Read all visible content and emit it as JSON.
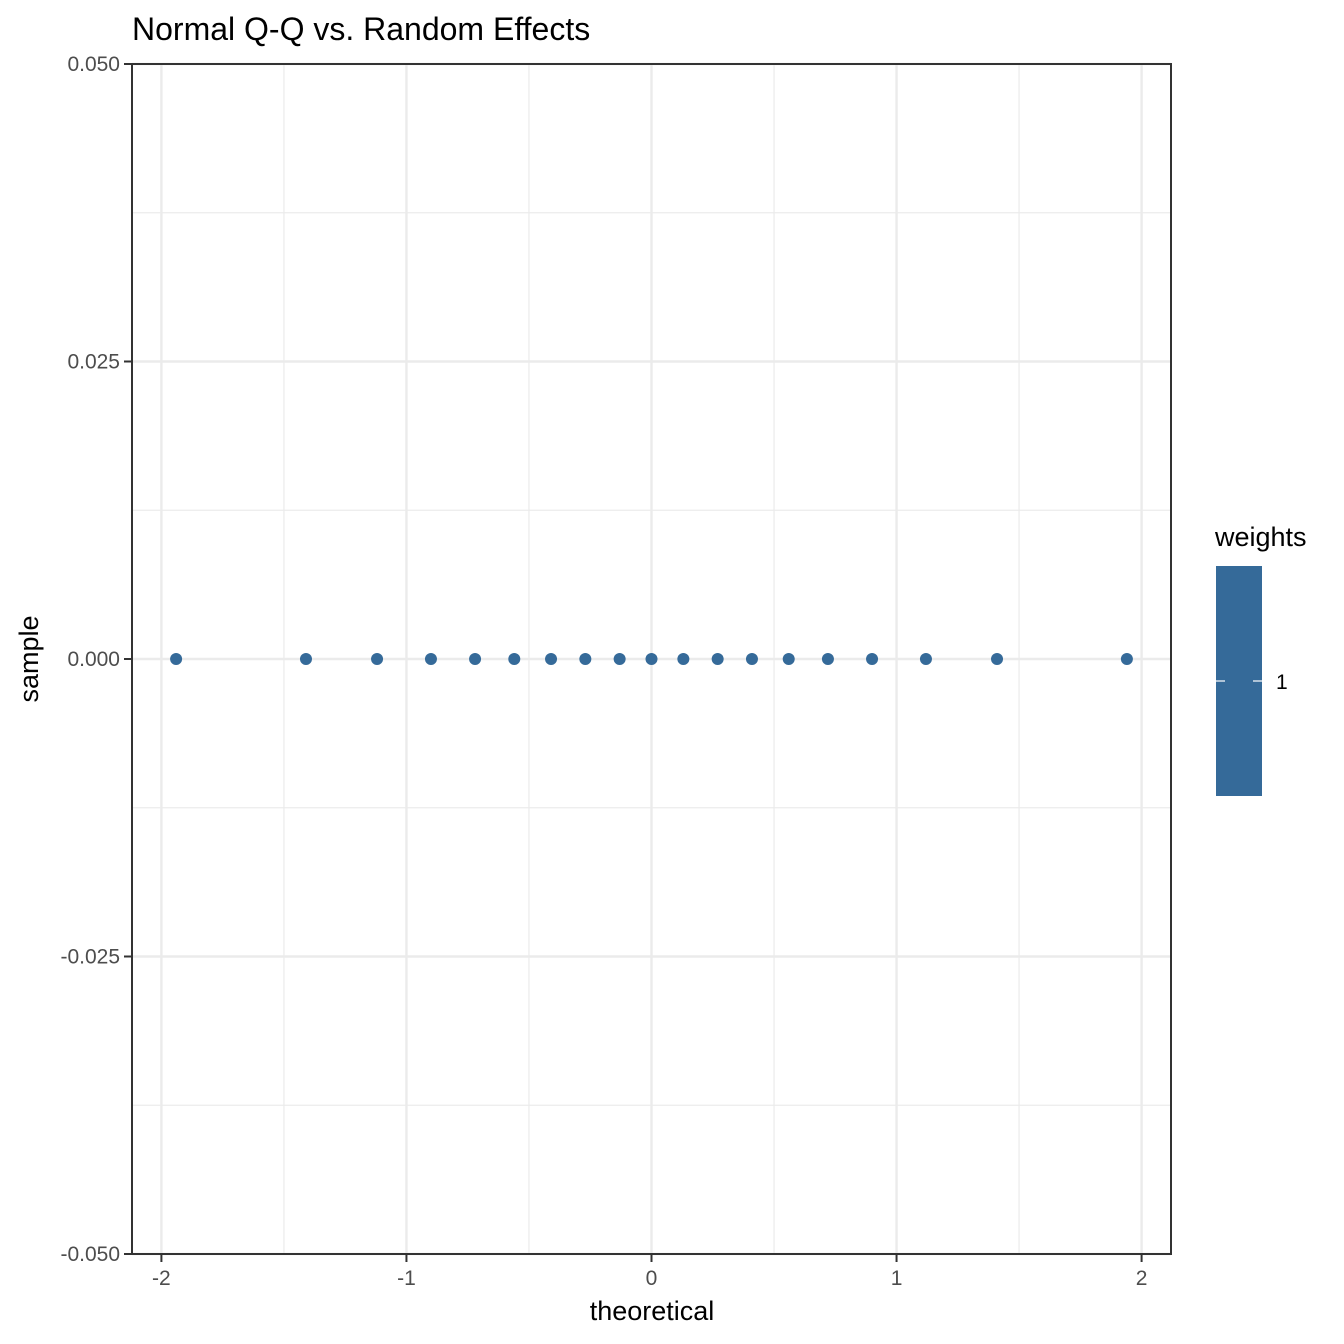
{
  "chart_data": {
    "type": "scatter",
    "title": "Normal Q-Q vs. Random Effects",
    "xlabel": "theoretical",
    "ylabel": "sample",
    "xlim": [
      -2.12,
      2.12
    ],
    "ylim": [
      -0.05,
      0.05
    ],
    "x_ticks": [
      -2,
      -1,
      0,
      1,
      2
    ],
    "x_tick_labels": [
      "-2",
      "-1",
      "0",
      "1",
      "2"
    ],
    "y_ticks": [
      -0.05,
      -0.025,
      0,
      0.025,
      0.05
    ],
    "y_tick_labels": [
      "-0.050",
      "-0.025",
      "0.000",
      "0.025",
      "0.050"
    ],
    "grid": true,
    "series": [
      {
        "x": [
          -1.94,
          -1.41,
          -1.12,
          -0.9,
          -0.72,
          -0.56,
          -0.41,
          -0.27,
          -0.13,
          0,
          0.13,
          0.27,
          0.41,
          0.56,
          0.72,
          0.9,
          1.12,
          1.41,
          1.94
        ],
        "y": [
          0,
          0,
          0,
          0,
          0,
          0,
          0,
          0,
          0,
          0,
          0,
          0,
          0,
          0,
          0,
          0,
          0,
          0,
          0
        ],
        "color": "#356a99"
      }
    ],
    "legend": {
      "title": "weights",
      "labels": [
        "1"
      ],
      "color": "#356a99",
      "placement": "right"
    }
  }
}
